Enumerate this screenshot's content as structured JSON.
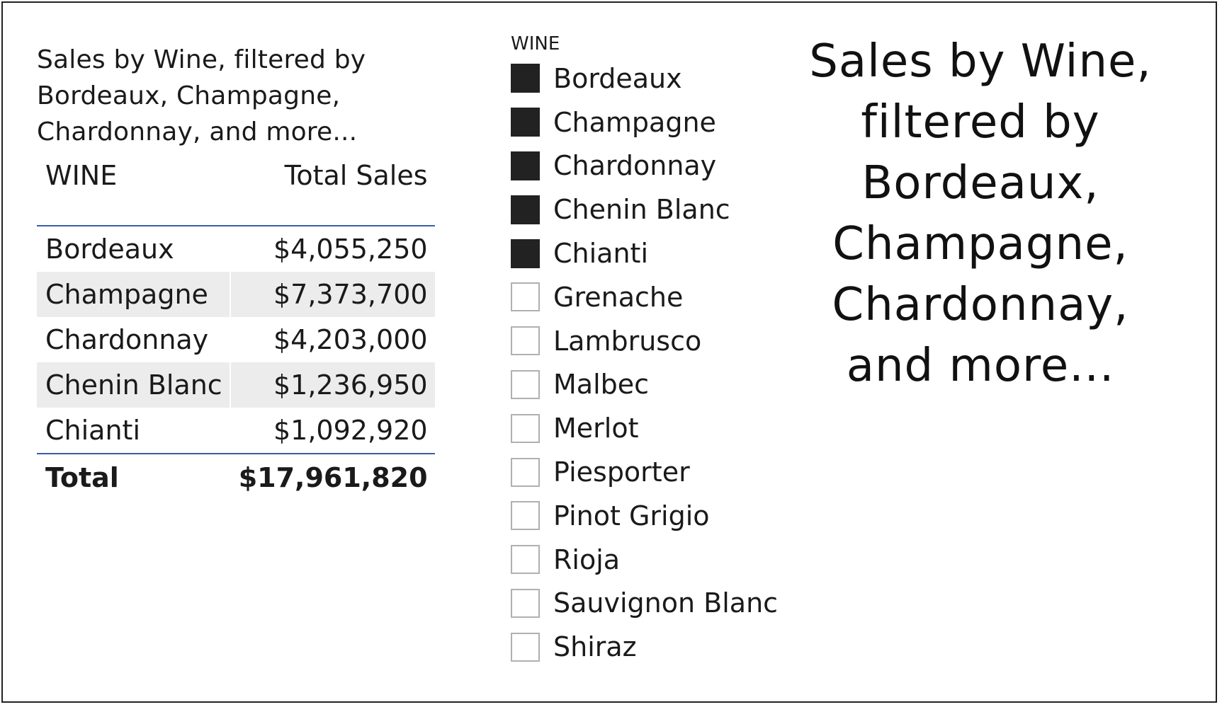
{
  "table_visual": {
    "title": "Sales by Wine, filtered by Bordeaux, Champagne, Chardonnay, and more...",
    "columns": [
      "WINE",
      "Total Sales"
    ],
    "rows": [
      {
        "wine": "Bordeaux",
        "sales": "$4,055,250"
      },
      {
        "wine": "Champagne",
        "sales": "$7,373,700"
      },
      {
        "wine": "Chardonnay",
        "sales": "$4,203,000"
      },
      {
        "wine": "Chenin Blanc",
        "sales": "$1,236,950"
      },
      {
        "wine": "Chianti",
        "sales": "$1,092,920"
      }
    ],
    "total": {
      "label": "Total",
      "sales": "$17,961,820"
    }
  },
  "slicer": {
    "header": "WINE",
    "items": [
      {
        "label": "Bordeaux",
        "checked": true
      },
      {
        "label": "Champagne",
        "checked": true
      },
      {
        "label": "Chardonnay",
        "checked": true
      },
      {
        "label": "Chenin Blanc",
        "checked": true
      },
      {
        "label": "Chianti",
        "checked": true
      },
      {
        "label": "Grenache",
        "checked": false
      },
      {
        "label": "Lambrusco",
        "checked": false
      },
      {
        "label": "Malbec",
        "checked": false
      },
      {
        "label": "Merlot",
        "checked": false
      },
      {
        "label": "Piesporter",
        "checked": false
      },
      {
        "label": "Pinot Grigio",
        "checked": false
      },
      {
        "label": "Rioja",
        "checked": false
      },
      {
        "label": "Sauvignon Blanc",
        "checked": false
      },
      {
        "label": "Shiraz",
        "checked": false
      }
    ]
  },
  "card": {
    "text": "Sales by Wine, filtered by Bordeaux, Champagne, Chardonnay, and more..."
  },
  "colors": {
    "accent_line": "#3b5ea8",
    "banded_row": "#ececec",
    "checked_fill": "#222222",
    "unchecked_border": "#b0b0b0"
  }
}
